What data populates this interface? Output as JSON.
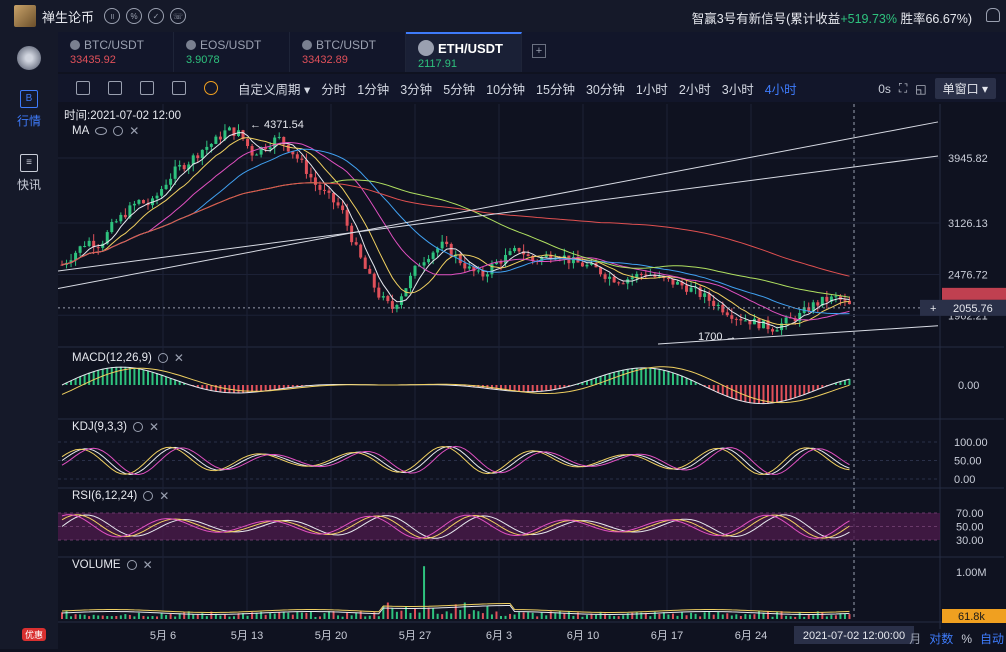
{
  "app": {
    "title": "禅生论币"
  },
  "signal": {
    "prefix": "智赢3号有新信号(累计收益",
    "gain": "+519.73%",
    "winrate": " 胜率66.67%)"
  },
  "sidebar": {
    "items": [
      {
        "label": "行情",
        "icon": "B"
      },
      {
        "label": "快讯",
        "icon": "≡"
      }
    ]
  },
  "tabs": [
    {
      "symbol": "BTC/USDT",
      "price": "33435.92",
      "color": "#e0505a"
    },
    {
      "symbol": "EOS/USDT",
      "price": "3.9078",
      "color": "#2ec27e"
    },
    {
      "symbol": "BTC/USDT",
      "price": "33432.89",
      "color": "#e0505a"
    },
    {
      "symbol": "ETH/USDT",
      "price": "2117.91",
      "color": "#2ec27e"
    }
  ],
  "add_tab": "+",
  "toolbar": {
    "custom_period": "自定义周期",
    "periods": [
      "分时",
      "1分钟",
      "3分钟",
      "5分钟",
      "10分钟",
      "15分钟",
      "30分钟",
      "1小时",
      "2小时",
      "3小时",
      "4小时"
    ],
    "active_period": "4小时",
    "countdown": "0s",
    "window_mode": "单窗口"
  },
  "chart_data": {
    "type": "candlestick",
    "time_label": "时间:2021-07-02 12:00",
    "x_ticks": [
      "5月 6",
      "5月 13",
      "5月 20",
      "5月 27",
      "6月 3",
      "6月 10",
      "6月 17",
      "6月 24"
    ],
    "cursor_time": "2021-07-02 12:00:00",
    "x_axis_suffix": "月",
    "main": {
      "label": "MA",
      "y_ticks": [
        3945.82,
        3126.13,
        2476.72,
        1962.21
      ],
      "ylim": [
        1600,
        4500
      ],
      "high_marker": "4371.54",
      "low_marker": "1700",
      "current_price": "2055.76",
      "close_path": [
        2600,
        2750,
        2900,
        2850,
        3100,
        3250,
        3400,
        3350,
        3600,
        3800,
        3900,
        4050,
        4150,
        4300,
        4250,
        4000,
        4100,
        4200,
        4050,
        3850,
        3600,
        3450,
        3300,
        2850,
        2500,
        2200,
        2050,
        2300,
        2600,
        2750,
        2850,
        2700,
        2550,
        2450,
        2600,
        2700,
        2800,
        2650,
        2700,
        2750,
        2650,
        2600,
        2550,
        2450,
        2400,
        2450,
        2500,
        2420,
        2380,
        2330,
        2250,
        2150,
        2050,
        1950,
        1900,
        1850,
        1800,
        1880,
        1950,
        2080,
        2150,
        2180,
        2080
      ]
    },
    "macd": {
      "label": "MACD(12,26,9)",
      "y_ticks": [
        0.0
      ]
    },
    "kdj": {
      "label": "KDJ(9,3,3)",
      "y_ticks": [
        100.0,
        50.0,
        0.0
      ]
    },
    "rsi": {
      "label": "RSI(6,12,24)",
      "y_ticks": [
        70.0,
        50.0,
        30.0
      ]
    },
    "volume": {
      "label": "VOLUME",
      "y_ticks": [
        "1.00M"
      ],
      "current": "61.8k"
    }
  },
  "bottom": {
    "log": "对数",
    "percent": "%",
    "auto": "自动"
  },
  "badge": "优惠",
  "colors": {
    "up": "#2ec27e",
    "down": "#e0505a",
    "accent": "#3e7bfa"
  }
}
